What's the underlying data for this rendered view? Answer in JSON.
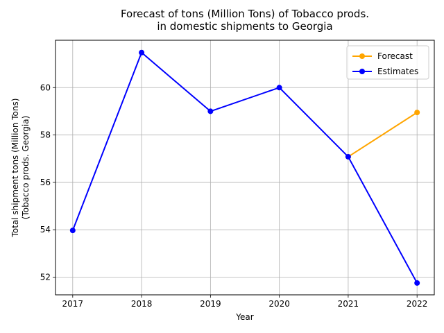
{
  "chart_data": {
    "type": "line",
    "title": [
      "Forecast of tons (Million Tons) of Tobacco prods.",
      "in domestic shipments to Georgia"
    ],
    "xlabel": "Year",
    "ylabel": [
      "Total shipment tons (Million Tons)",
      "(Tobacco prods. Georgia)"
    ],
    "x": [
      2017,
      2018,
      2019,
      2020,
      2021,
      2022
    ],
    "xticks": [
      "2017",
      "2018",
      "2019",
      "2020",
      "2021",
      "2022"
    ],
    "yticks": [
      52,
      54,
      56,
      58,
      60
    ],
    "xlim": [
      2016.75,
      2022.25
    ],
    "ylim": [
      51.25,
      62.0
    ],
    "grid": true,
    "legend_position": "upper-right",
    "series": [
      {
        "name": "Forecast",
        "color": "#FFA500",
        "points": [
          [
            2021,
            57.08
          ],
          [
            2022,
            58.95
          ]
        ]
      },
      {
        "name": "Estimates",
        "color": "#0000FF",
        "points": [
          [
            2017,
            53.97
          ],
          [
            2018,
            61.48
          ],
          [
            2019,
            59.0
          ],
          [
            2020,
            60.0
          ],
          [
            2021,
            57.08
          ],
          [
            2022,
            51.75
          ]
        ]
      }
    ]
  }
}
